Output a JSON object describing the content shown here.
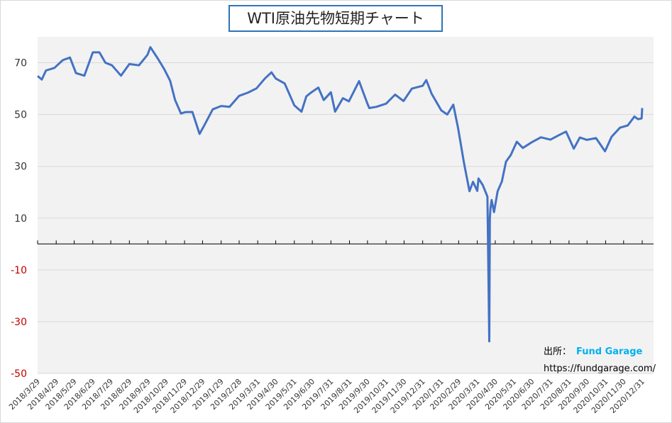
{
  "chart_data": {
    "type": "line",
    "title": "WTI原油先物短期チャート",
    "source_label": "出所：",
    "source_name": "Fund Garage",
    "source_url": "https://fundgarage.com/",
    "x": [
      "2018/3/29",
      "2018/4/5",
      "2018/4/12",
      "2018/4/26",
      "2018/5/10",
      "2018/5/22",
      "2018/6/1",
      "2018/6/15",
      "2018/6/29",
      "2018/7/10",
      "2018/7/20",
      "2018/7/31",
      "2018/8/15",
      "2018/8/29",
      "2018/9/14",
      "2018/9/28",
      "2018/10/3",
      "2018/10/15",
      "2018/10/26",
      "2018/11/5",
      "2018/11/13",
      "2018/11/23",
      "2018/11/30",
      "2018/12/12",
      "2018/12/24",
      "2018/12/31",
      "2019/1/15",
      "2019/1/29",
      "2019/2/12",
      "2019/2/28",
      "2019/3/15",
      "2019/3/29",
      "2019/4/12",
      "2019/4/23",
      "2019/4/30",
      "2019/5/15",
      "2019/5/31",
      "2019/6/12",
      "2019/6/20",
      "2019/6/28",
      "2019/7/10",
      "2019/7/19",
      "2019/7/31",
      "2019/8/7",
      "2019/8/20",
      "2019/8/30",
      "2019/9/16",
      "2019/9/30",
      "2019/10/3",
      "2019/10/15",
      "2019/10/31",
      "2019/11/15",
      "2019/11/29",
      "2019/12/13",
      "2019/12/31",
      "2020/1/6",
      "2020/1/15",
      "2020/1/31",
      "2020/2/10",
      "2020/2/20",
      "2020/2/28",
      "2020/3/9",
      "2020/3/18",
      "2020/3/24",
      "2020/3/31",
      "2020/4/2",
      "2020/4/9",
      "2020/4/17",
      "2020/4/20",
      "2020/4/21",
      "2020/4/22",
      "2020/4/24",
      "2020/4/28",
      "2020/5/4",
      "2020/5/11",
      "2020/5/18",
      "2020/5/26",
      "2020/6/5",
      "2020/6/15",
      "2020/6/30",
      "2020/7/15",
      "2020/7/31",
      "2020/8/14",
      "2020/8/26",
      "2020/9/8",
      "2020/9/18",
      "2020/9/30",
      "2020/10/15",
      "2020/10/30",
      "2020/11/10",
      "2020/11/24",
      "2020/12/7",
      "2020/12/18",
      "2020/12/24",
      "2020/12/30",
      "2020/12/31"
    ],
    "series": [
      {
        "name": "WTI",
        "color": "#4472c4",
        "values": [
          64.9,
          63.5,
          67,
          68,
          71,
          72,
          66,
          65,
          74,
          74,
          70,
          69,
          65,
          69.5,
          69,
          73,
          76,
          71.8,
          67.6,
          63,
          55.7,
          50.4,
          50.9,
          51,
          42.5,
          45.4,
          52,
          53.3,
          53,
          57.2,
          58.5,
          60.1,
          63.9,
          66.3,
          63.9,
          62,
          53.5,
          51.1,
          57,
          58.5,
          60.4,
          55.6,
          58.6,
          51.1,
          56.3,
          55.1,
          62.9,
          54.1,
          52.5,
          53,
          54.2,
          57.7,
          55.2,
          60,
          61.1,
          63.3,
          58,
          51.6,
          50,
          53.8,
          44.8,
          31.1,
          20.4,
          24,
          20.5,
          25.3,
          22.8,
          18.3,
          -37.6,
          10,
          13.8,
          17,
          12.3,
          20.4,
          24.1,
          31.8,
          34.4,
          39.5,
          37.1,
          39.3,
          41.2,
          40.3,
          42,
          43.4,
          36.8,
          41.1,
          40.2,
          40.9,
          35.8,
          41.4,
          44.9,
          45.8,
          49.2,
          48.2,
          48.5,
          52.5
        ]
      }
    ],
    "xlim": [
      "2018/3/29",
      "2020/12/31"
    ],
    "xticks": [
      "2018/3/29",
      "2018/4/29",
      "2018/5/29",
      "2018/6/29",
      "2018/7/29",
      "2018/8/29",
      "2018/9/29",
      "2018/10/29",
      "2018/11/29",
      "2018/12/29",
      "2019/1/29",
      "2019/2/28",
      "2019/3/31",
      "2019/4/30",
      "2019/5/31",
      "2019/6/30",
      "2019/7/31",
      "2019/8/31",
      "2019/9/30",
      "2019/10/31",
      "2019/11/30",
      "2019/12/31",
      "2020/1/31",
      "2020/2/29",
      "2020/3/31",
      "2020/4/30",
      "2020/5/31",
      "2020/6/30",
      "2020/7/31",
      "2020/8/31",
      "2020/9/30",
      "2020/10/31",
      "2020/11/30",
      "2020/12/31"
    ],
    "ylim": [
      -50,
      80
    ],
    "yticks": [
      -50,
      -30,
      -10,
      10,
      30,
      50,
      70
    ],
    "grid": true,
    "negative_tick_color": "#c00000"
  }
}
